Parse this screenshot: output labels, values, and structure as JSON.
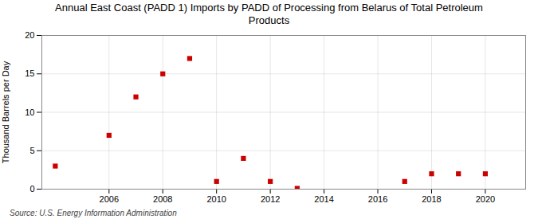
{
  "chart_data": {
    "type": "scatter",
    "title": "Annual East Coast (PADD 1) Imports by PADD of Processing from Belarus of Total Petroleum\nProducts",
    "ylabel": "Thousand Barrels per Day",
    "annotation": "Source: U.S. Energy Information Administration",
    "x": [
      2004,
      2006,
      2007,
      2008,
      2009,
      2010,
      2011,
      2012,
      2013,
      2017,
      2018,
      2019,
      2020
    ],
    "values": [
      3.0,
      7.0,
      12.0,
      15.0,
      17.0,
      1.0,
      4.0,
      1.0,
      0.1,
      1.0,
      2.0,
      2.0,
      2.0
    ],
    "color": "#cc0000",
    "marker": "square",
    "xlim": [
      2003.5,
      2021.5
    ],
    "ylim": [
      0,
      20
    ],
    "xticks": [
      2006,
      2008,
      2010,
      2012,
      2014,
      2016,
      2018,
      2020
    ],
    "yticks": [
      0,
      5,
      10,
      15,
      20
    ],
    "grid": true
  }
}
